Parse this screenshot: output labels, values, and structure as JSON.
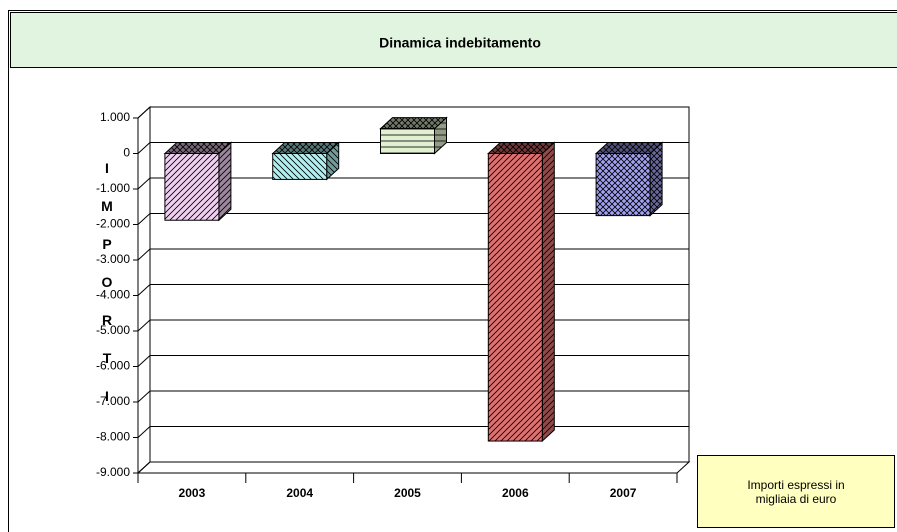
{
  "chart_data": {
    "type": "bar3d",
    "title": "Dinamica indebitamento",
    "y_label": "IMPORTI",
    "note": "Importi espressi in migliaia di euro",
    "categories": [
      "2003",
      "2004",
      "2005",
      "2006",
      "2007"
    ],
    "values": [
      -1880,
      -730,
      700,
      -8100,
      -1750
    ],
    "colors": [
      "#f0d0f0",
      "#b0f0f0",
      "#e0f0d0",
      "#e07070",
      "#a0a0f0"
    ],
    "ylim": [
      -9000,
      1000
    ],
    "yticks": [
      {
        "value": 1000,
        "label": "1.000"
      },
      0,
      {
        "value": -1000,
        "label": "-1.000"
      },
      {
        "value": -2000,
        "label": "-2.000"
      },
      {
        "value": -3000,
        "label": "-3.000"
      },
      {
        "value": -4000,
        "label": "-4.000"
      },
      {
        "value": -5000,
        "label": "-5.000"
      },
      {
        "value": -6000,
        "label": "-6.000"
      },
      {
        "value": -7000,
        "label": "-7.000"
      },
      {
        "value": -8000,
        "label": "-8.000"
      },
      {
        "value": -9000,
        "label": "-9.000"
      }
    ],
    "grid": true
  }
}
